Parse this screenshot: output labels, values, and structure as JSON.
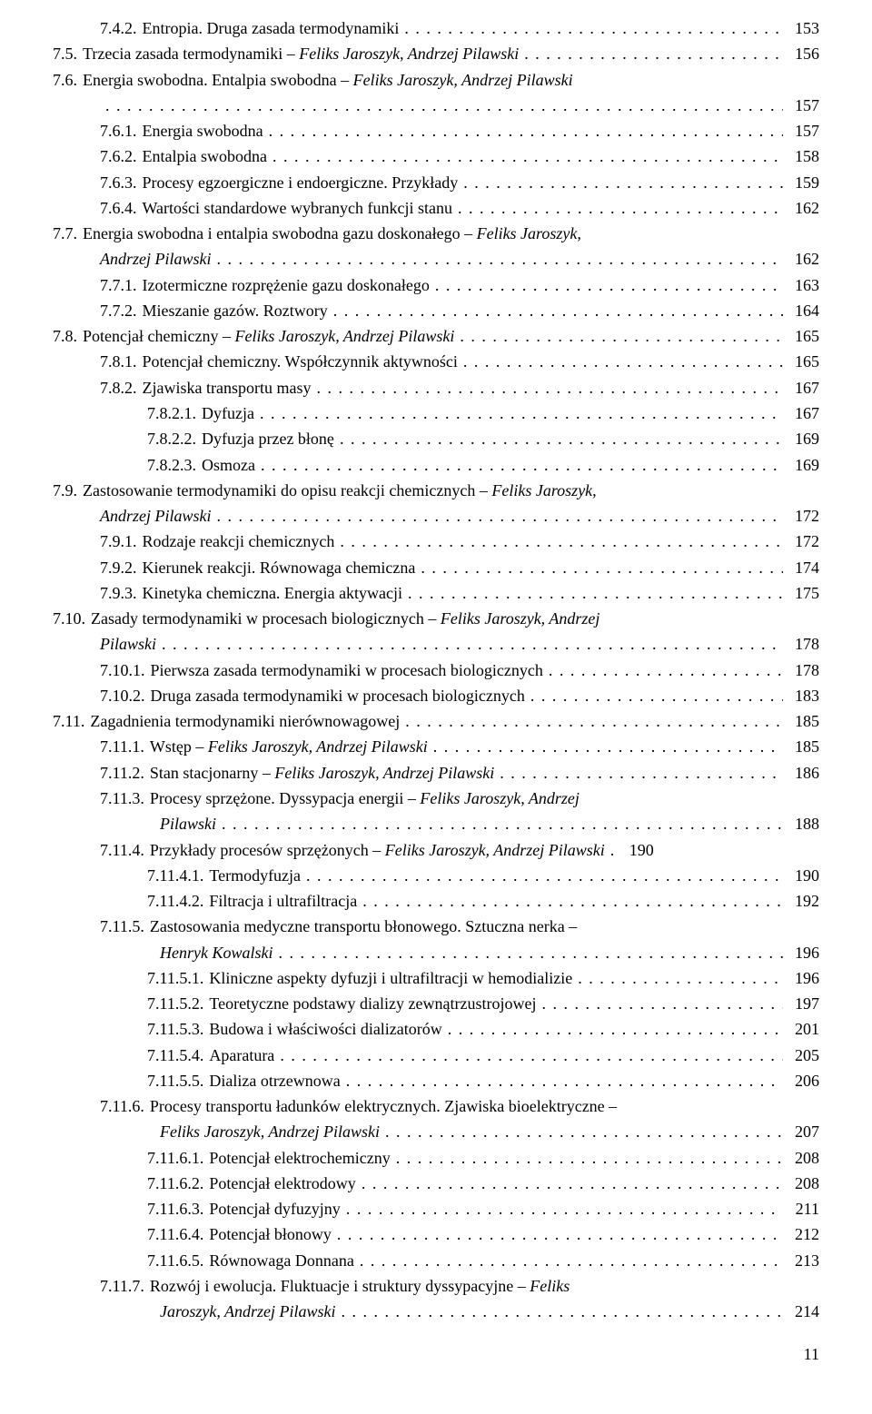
{
  "fonts": {
    "body_family": "Times New Roman",
    "body_size_pt": 13
  },
  "colors": {
    "text": "#000000",
    "background": "#ffffff"
  },
  "page_number": "11",
  "entries": [
    {
      "indent": "lv1",
      "num": "7.4.2.",
      "text": "Entropia. Druga zasada termodynamiki",
      "page": "153"
    },
    {
      "indent": "lv0",
      "num": "7.5.",
      "text": "Trzecia zasada termodynamiki – ",
      "italic": "Feliks Jaroszyk, Andrzej Pilawski",
      "page": "156"
    },
    {
      "indent": "lv0",
      "num": "7.6.",
      "text": "Energia swobodna. Entalpia swobodna – ",
      "italic": "Feliks Jaroszyk, Andrzej Pilawski",
      "page": "157",
      "wrap": false,
      "twoLine": true,
      "cont": "lv1"
    },
    {
      "indent": "lv1",
      "num": "7.6.1.",
      "text": "Energia swobodna",
      "page": "157"
    },
    {
      "indent": "lv1",
      "num": "7.6.2.",
      "text": "Entalpia swobodna",
      "page": "158"
    },
    {
      "indent": "lv1",
      "num": "7.6.3.",
      "text": "Procesy egzoergiczne i endoergiczne. Przykłady",
      "page": "159"
    },
    {
      "indent": "lv1",
      "num": "7.6.4.",
      "text": "Wartości standardowe wybranych funkcji stanu",
      "page": "162"
    },
    {
      "indent": "lv0",
      "num": "7.7.",
      "text": "Energia swobodna i entalpia swobodna gazu doskonałego – ",
      "italic": "Feliks Jaroszyk,",
      "italic2": "Andrzej Pilawski",
      "page": "162",
      "twoLine": true,
      "cont": "lv1"
    },
    {
      "indent": "lv1",
      "num": "7.7.1.",
      "text": "Izotermiczne rozprężenie gazu doskonałego",
      "page": "163"
    },
    {
      "indent": "lv1",
      "num": "7.7.2.",
      "text": "Mieszanie gazów. Roztwory",
      "page": "164"
    },
    {
      "indent": "lv0",
      "num": "7.8.",
      "text": "Potencjał chemiczny – ",
      "italic": "Feliks Jaroszyk, Andrzej Pilawski",
      "page": "165"
    },
    {
      "indent": "lv1",
      "num": "7.8.1.",
      "text": "Potencjał chemiczny. Współczynnik aktywności",
      "page": "165"
    },
    {
      "indent": "lv1",
      "num": "7.8.2.",
      "text": "Zjawiska transportu masy",
      "page": "167"
    },
    {
      "indent": "lv2",
      "num": "7.8.2.1.",
      "text": "Dyfuzja",
      "page": "167"
    },
    {
      "indent": "lv2",
      "num": "7.8.2.2.",
      "text": "Dyfuzja przez błonę",
      "page": "169"
    },
    {
      "indent": "lv2",
      "num": "7.8.2.3.",
      "text": "Osmoza",
      "page": "169"
    },
    {
      "indent": "lv0",
      "num": "7.9.",
      "text": "Zastosowanie termodynamiki do opisu reakcji chemicznych – ",
      "italic": "Feliks Jaroszyk,",
      "italic2": "Andrzej Pilawski",
      "page": "172",
      "twoLine": true,
      "cont": "lv1"
    },
    {
      "indent": "lv1",
      "num": "7.9.1.",
      "text": "Rodzaje reakcji chemicznych",
      "page": "172"
    },
    {
      "indent": "lv1",
      "num": "7.9.2.",
      "text": "Kierunek reakcji. Równowaga chemiczna",
      "page": "174"
    },
    {
      "indent": "lv1",
      "num": "7.9.3.",
      "text": "Kinetyka chemiczna. Energia aktywacji",
      "page": "175"
    },
    {
      "indent": "lv0",
      "num": "7.10.",
      "text": "Zasady termodynamiki w procesach biologicznych – ",
      "italic": "Feliks Jaroszyk, Andrzej",
      "italic2": "Pilawski",
      "page": "178",
      "twoLine": true,
      "cont": "lv1"
    },
    {
      "indent": "lv1",
      "num": "7.10.1.",
      "text": "Pierwsza zasada termodynamiki w procesach biologicznych",
      "page": "178"
    },
    {
      "indent": "lv1",
      "num": "7.10.2.",
      "text": "Druga zasada termodynamiki w procesach biologicznych",
      "page": "183"
    },
    {
      "indent": "lv0",
      "num": "7.11.",
      "text": "Zagadnienia termodynamiki nierównowagowej",
      "page": "185"
    },
    {
      "indent": "lv1",
      "num": "7.11.1.",
      "text": "Wstęp – ",
      "italic": "Feliks Jaroszyk, Andrzej Pilawski",
      "page": "185"
    },
    {
      "indent": "lv1",
      "num": "7.11.2.",
      "text": "Stan stacjonarny – ",
      "italic": "Feliks Jaroszyk, Andrzej Pilawski",
      "page": "186"
    },
    {
      "indent": "lv1",
      "num": "7.11.3.",
      "text": "Procesy sprzężone. Dyssypacja energii – ",
      "italic": "Feliks Jaroszyk, Andrzej",
      "italic2": "Pilawski",
      "page": "188",
      "twoLine": true,
      "cont": "cont2"
    },
    {
      "indent": "lv1",
      "num": "7.11.4.",
      "text": "Przykłady procesów sprzężonych – ",
      "italic": "Feliks Jaroszyk, Andrzej Pilawski",
      "page": "190",
      "tight": true
    },
    {
      "indent": "lv2",
      "num": "7.11.4.1.",
      "text": "Termodyfuzja",
      "page": "190"
    },
    {
      "indent": "lv2",
      "num": "7.11.4.2.",
      "text": "Filtracja i ultrafiltracja",
      "page": "192"
    },
    {
      "indent": "lv1",
      "num": "7.11.5.",
      "text": "Zastosowania medyczne transportu błonowego. Sztuczna nerka –",
      "italic2f": "Henryk Kowalski",
      "page": "196",
      "twoLine": true,
      "cont": "cont2",
      "noDotsFirst": true
    },
    {
      "indent": "lv2",
      "num": "7.11.5.1.",
      "text": "Kliniczne aspekty dyfuzji i ultrafiltracji w hemodializie",
      "page": "196"
    },
    {
      "indent": "lv2",
      "num": "7.11.5.2.",
      "text": "Teoretyczne podstawy dializy zewnątrzustrojowej",
      "page": "197"
    },
    {
      "indent": "lv2",
      "num": "7.11.5.3.",
      "text": "Budowa i właściwości dializatorów",
      "page": "201"
    },
    {
      "indent": "lv2",
      "num": "7.11.5.4.",
      "text": "Aparatura",
      "page": "205"
    },
    {
      "indent": "lv2",
      "num": "7.11.5.5.",
      "text": "Dializa otrzewnowa",
      "page": "206"
    },
    {
      "indent": "lv1",
      "num": "7.11.6.",
      "text": "Procesy transportu ładunków elektrycznych. Zjawiska bioelektryczne –",
      "italic2f": "Feliks Jaroszyk, Andrzej Pilawski",
      "page": "207",
      "twoLine": true,
      "cont": "cont2",
      "noDotsFirst": true
    },
    {
      "indent": "lv2",
      "num": "7.11.6.1.",
      "text": "Potencjał elektrochemiczny",
      "page": "208"
    },
    {
      "indent": "lv2",
      "num": "7.11.6.2.",
      "text": "Potencjał elektrodowy",
      "page": "208"
    },
    {
      "indent": "lv2",
      "num": "7.11.6.3.",
      "text": "Potencjał dyfuzyjny",
      "page": "211"
    },
    {
      "indent": "lv2",
      "num": "7.11.6.4.",
      "text": "Potencjał błonowy",
      "page": "212"
    },
    {
      "indent": "lv2",
      "num": "7.11.6.5.",
      "text": "Równowaga Donnana",
      "page": "213"
    },
    {
      "indent": "lv1",
      "num": "7.11.7.",
      "text": "Rozwój i ewolucja. Fluktuacje i struktury dyssypacyjne – ",
      "italic": "Feliks",
      "italic2": "Jaroszyk, Andrzej Pilawski",
      "page": "214",
      "twoLine": true,
      "cont": "cont2"
    }
  ]
}
